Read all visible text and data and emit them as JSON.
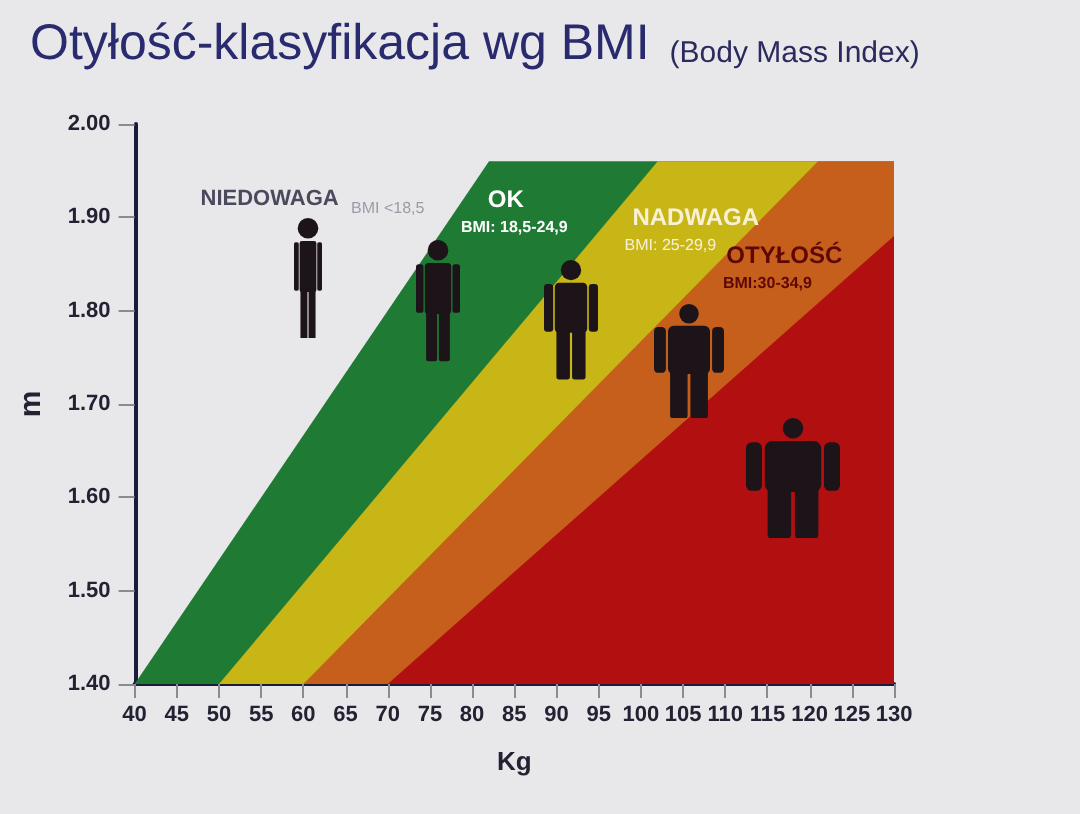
{
  "chart_data": {
    "type": "area",
    "title": "Otyłość-klasyfikacja wg BMI",
    "subtitle": "(Body Mass Index)",
    "xlabel": "Kg",
    "ylabel": "m",
    "series": [
      {
        "color": "#1f7a34",
        "x": [
          40,
          82,
          130
        ],
        "values": [
          1.4,
          1.96,
          1.96
        ]
      },
      {
        "color": "#c8b516",
        "x": [
          50,
          102,
          130
        ],
        "values": [
          1.4,
          1.96,
          1.96
        ]
      },
      {
        "color": "#c65f1b",
        "x": [
          60,
          121,
          130
        ],
        "values": [
          1.4,
          1.96,
          1.96
        ]
      },
      {
        "color": "#b20f10",
        "x": [
          70,
          130
        ],
        "values": [
          1.4,
          1.88
        ]
      }
    ],
    "xlim": [
      40,
      130
    ],
    "ylim": [
      1.4,
      2.0
    ],
    "xticks": [
      40,
      45,
      50,
      55,
      60,
      65,
      70,
      75,
      80,
      85,
      90,
      95,
      100,
      105,
      110,
      115,
      120,
      125,
      130
    ],
    "yticks": [
      {
        "value": 1.4,
        "label": "1.40"
      },
      {
        "value": 1.5,
        "label": "1.50"
      },
      {
        "value": 1.6,
        "label": "1.60"
      },
      {
        "value": 1.7,
        "label": "1.70"
      },
      {
        "value": 1.8,
        "label": "1.80"
      },
      {
        "value": 1.9,
        "label": "1.90"
      },
      {
        "value": 2.0,
        "label": "2.00"
      }
    ],
    "annotations": [
      "NIEDOWAGA",
      "BMI <18,5",
      "OK",
      "BMI: 18,5-24,9",
      "NADWAGA",
      "BMI: 25-29,9",
      "OTYŁOŚĆ",
      "BMI:30-34,9"
    ]
  }
}
